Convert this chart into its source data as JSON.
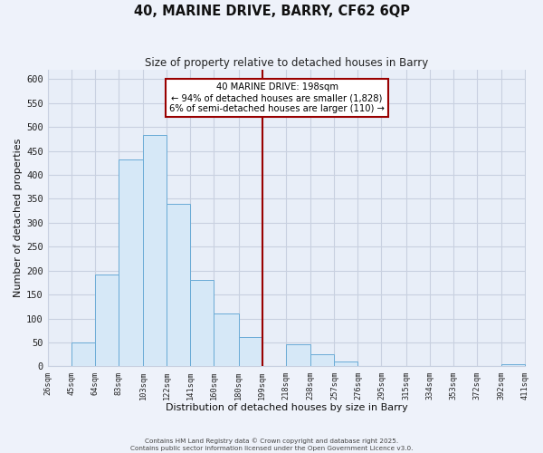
{
  "title": "40, MARINE DRIVE, BARRY, CF62 6QP",
  "subtitle": "Size of property relative to detached houses in Barry",
  "xlabel": "Distribution of detached houses by size in Barry",
  "ylabel": "Number of detached properties",
  "bar_edges": [
    26,
    45,
    64,
    83,
    103,
    122,
    141,
    160,
    180,
    199,
    218,
    238,
    257,
    276,
    295,
    315,
    334,
    353,
    372,
    392,
    411
  ],
  "bar_heights": [
    0,
    50,
    192,
    433,
    484,
    340,
    180,
    110,
    62,
    0,
    46,
    25,
    10,
    0,
    0,
    0,
    0,
    0,
    0,
    5
  ],
  "bar_color": "#d6e8f7",
  "bar_edge_color": "#6aabd6",
  "vline_x": 199,
  "vline_color": "#990000",
  "annotation_title": "40 MARINE DRIVE: 198sqm",
  "annotation_line1": "← 94% of detached houses are smaller (1,828)",
  "annotation_line2": "6% of semi-detached houses are larger (110) →",
  "annotation_box_edge_color": "#990000",
  "annotation_box_face_color": "#ffffff",
  "ylim": [
    0,
    620
  ],
  "yticks": [
    0,
    50,
    100,
    150,
    200,
    250,
    300,
    350,
    400,
    450,
    500,
    550,
    600
  ],
  "tick_labels": [
    "26sqm",
    "45sqm",
    "64sqm",
    "83sqm",
    "103sqm",
    "122sqm",
    "141sqm",
    "160sqm",
    "180sqm",
    "199sqm",
    "218sqm",
    "238sqm",
    "257sqm",
    "276sqm",
    "295sqm",
    "315sqm",
    "334sqm",
    "353sqm",
    "372sqm",
    "392sqm",
    "411sqm"
  ],
  "footer1": "Contains HM Land Registry data © Crown copyright and database right 2025.",
  "footer2": "Contains public sector information licensed under the Open Government Licence v3.0.",
  "bg_color": "#eef2fa",
  "grid_color": "#c8d0e0",
  "plot_bg_color": "#e8eef8"
}
